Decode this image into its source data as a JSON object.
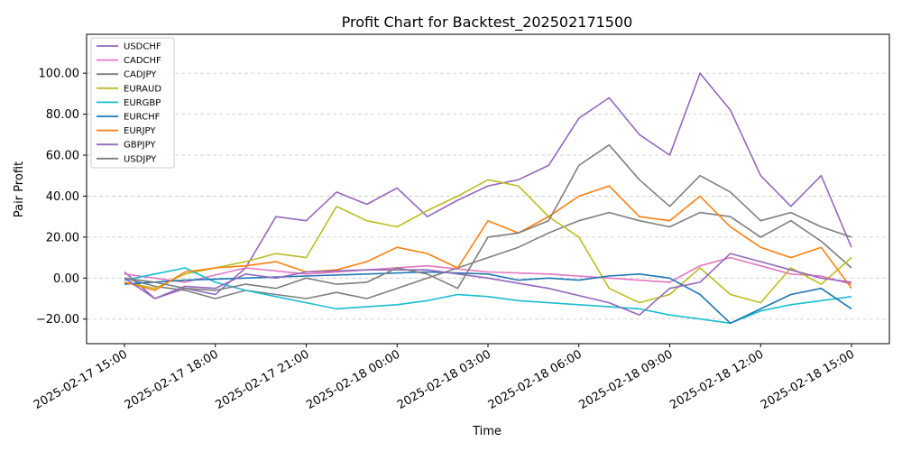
{
  "chart_data": {
    "type": "line",
    "title": "Profit Chart for Backtest_202502171500",
    "xlabel": "Time",
    "ylabel": "Pair Profit",
    "grid": "horizontal dashed",
    "legend_position": "top-left",
    "x_range": [
      "2025-02-17 13:45",
      "2025-02-18 16:15"
    ],
    "ylim": [
      -32,
      119
    ],
    "y_ticks": [
      -20,
      0,
      20,
      40,
      60,
      80,
      100
    ],
    "y_tick_labels": [
      "−20.00",
      "0.00",
      "20.00",
      "40.00",
      "60.00",
      "80.00",
      "100.00"
    ],
    "x_ticks": [
      "2025-02-17 15:00",
      "2025-02-17 18:00",
      "2025-02-17 21:00",
      "2025-02-18 00:00",
      "2025-02-18 03:00",
      "2025-02-18 06:00",
      "2025-02-18 09:00",
      "2025-02-18 12:00",
      "2025-02-18 15:00"
    ],
    "x_tick_labels": [
      "2025-02-17 15:00",
      "2025-02-17 18:00",
      "2025-02-17 21:00",
      "2025-02-18 00:00",
      "2025-02-18 03:00",
      "2025-02-18 06:00",
      "2025-02-18 09:00",
      "2025-02-18 12:00",
      "2025-02-18 15:00"
    ],
    "series": [
      {
        "name": "USDCHF",
        "color": "#9467bd",
        "points": [
          [
            "2025-02-17 15:00",
            3
          ],
          [
            "2025-02-17 16:00",
            -10
          ],
          [
            "2025-02-17 17:00",
            -5
          ],
          [
            "2025-02-17 18:00",
            -8
          ],
          [
            "2025-02-17 19:00",
            5
          ],
          [
            "2025-02-17 20:00",
            30
          ],
          [
            "2025-02-17 21:00",
            28
          ],
          [
            "2025-02-17 22:00",
            42
          ],
          [
            "2025-02-17 23:00",
            36
          ],
          [
            "2025-02-18 00:00",
            44
          ],
          [
            "2025-02-18 01:00",
            30
          ],
          [
            "2025-02-18 02:00",
            38
          ],
          [
            "2025-02-18 03:00",
            45
          ],
          [
            "2025-02-18 04:00",
            48
          ],
          [
            "2025-02-18 05:00",
            55
          ],
          [
            "2025-02-18 06:00",
            78
          ],
          [
            "2025-02-18 07:00",
            88
          ],
          [
            "2025-02-18 08:00",
            70
          ],
          [
            "2025-02-18 09:00",
            60
          ],
          [
            "2025-02-18 10:00",
            100
          ],
          [
            "2025-02-18 11:00",
            82
          ],
          [
            "2025-02-18 12:00",
            50
          ],
          [
            "2025-02-18 13:00",
            35
          ],
          [
            "2025-02-18 14:00",
            50
          ],
          [
            "2025-02-18 15:00",
            15
          ]
        ]
      },
      {
        "name": "CADCHF",
        "color": "#e377c2",
        "points": [
          [
            "2025-02-17 15:00",
            2
          ],
          [
            "2025-02-17 17:00",
            -2
          ],
          [
            "2025-02-17 19:00",
            5
          ],
          [
            "2025-02-17 21:00",
            2
          ],
          [
            "2025-02-17 23:00",
            4
          ],
          [
            "2025-02-18 01:00",
            6
          ],
          [
            "2025-02-18 03:00",
            3
          ],
          [
            "2025-02-18 05:00",
            2
          ],
          [
            "2025-02-18 07:00",
            0
          ],
          [
            "2025-02-18 09:00",
            -2
          ],
          [
            "2025-02-18 10:00",
            6
          ],
          [
            "2025-02-18 11:00",
            10
          ],
          [
            "2025-02-18 12:00",
            6
          ],
          [
            "2025-02-18 13:00",
            2
          ],
          [
            "2025-02-18 14:00",
            1
          ],
          [
            "2025-02-18 15:00",
            -3
          ]
        ]
      },
      {
        "name": "CADJPY",
        "color": "#7f7f7f",
        "points": [
          [
            "2025-02-17 15:00",
            0
          ],
          [
            "2025-02-17 16:00",
            -4
          ],
          [
            "2025-02-17 17:00",
            -6
          ],
          [
            "2025-02-17 18:00",
            -10
          ],
          [
            "2025-02-17 19:00",
            -6
          ],
          [
            "2025-02-17 20:00",
            -8
          ],
          [
            "2025-02-17 21:00",
            -10
          ],
          [
            "2025-02-17 22:00",
            -7
          ],
          [
            "2025-02-17 23:00",
            -10
          ],
          [
            "2025-02-18 00:00",
            -5
          ],
          [
            "2025-02-18 01:00",
            0
          ],
          [
            "2025-02-18 02:00",
            5
          ],
          [
            "2025-02-18 03:00",
            10
          ],
          [
            "2025-02-18 04:00",
            15
          ],
          [
            "2025-02-18 05:00",
            22
          ],
          [
            "2025-02-18 06:00",
            28
          ],
          [
            "2025-02-18 07:00",
            32
          ],
          [
            "2025-02-18 08:00",
            28
          ],
          [
            "2025-02-18 09:00",
            25
          ],
          [
            "2025-02-18 10:00",
            32
          ],
          [
            "2025-02-18 11:00",
            30
          ],
          [
            "2025-02-18 12:00",
            20
          ],
          [
            "2025-02-18 13:00",
            28
          ],
          [
            "2025-02-18 14:00",
            18
          ],
          [
            "2025-02-18 15:00",
            5
          ]
        ]
      },
      {
        "name": "EURAUD",
        "color": "#bcbd22",
        "points": [
          [
            "2025-02-17 15:00",
            -2
          ],
          [
            "2025-02-17 16:00",
            -5
          ],
          [
            "2025-02-17 17:00",
            2
          ],
          [
            "2025-02-17 18:00",
            5
          ],
          [
            "2025-02-17 19:00",
            8
          ],
          [
            "2025-02-17 20:00",
            12
          ],
          [
            "2025-02-17 21:00",
            10
          ],
          [
            "2025-02-17 22:00",
            35
          ],
          [
            "2025-02-17 23:00",
            28
          ],
          [
            "2025-02-18 00:00",
            25
          ],
          [
            "2025-02-18 01:00",
            33
          ],
          [
            "2025-02-18 02:00",
            40
          ],
          [
            "2025-02-18 03:00",
            48
          ],
          [
            "2025-02-18 04:00",
            45
          ],
          [
            "2025-02-18 05:00",
            30
          ],
          [
            "2025-02-18 06:00",
            20
          ],
          [
            "2025-02-18 07:00",
            -5
          ],
          [
            "2025-02-18 08:00",
            -12
          ],
          [
            "2025-02-18 09:00",
            -8
          ],
          [
            "2025-02-18 10:00",
            5
          ],
          [
            "2025-02-18 11:00",
            -8
          ],
          [
            "2025-02-18 12:00",
            -12
          ],
          [
            "2025-02-18 13:00",
            5
          ],
          [
            "2025-02-18 14:00",
            -3
          ],
          [
            "2025-02-18 15:00",
            10
          ]
        ]
      },
      {
        "name": "EURGBP",
        "color": "#17becf",
        "points": [
          [
            "2025-02-17 15:00",
            -1
          ],
          [
            "2025-02-17 16:00",
            2
          ],
          [
            "2025-02-17 17:00",
            5
          ],
          [
            "2025-02-17 18:00",
            -2
          ],
          [
            "2025-02-17 19:00",
            -6
          ],
          [
            "2025-02-17 20:00",
            -9
          ],
          [
            "2025-02-17 21:00",
            -12
          ],
          [
            "2025-02-17 22:00",
            -15
          ],
          [
            "2025-02-17 23:00",
            -14
          ],
          [
            "2025-02-18 00:00",
            -13
          ],
          [
            "2025-02-18 01:00",
            -11
          ],
          [
            "2025-02-18 02:00",
            -8
          ],
          [
            "2025-02-18 03:00",
            -9
          ],
          [
            "2025-02-18 04:00",
            -11
          ],
          [
            "2025-02-18 05:00",
            -12
          ],
          [
            "2025-02-18 06:00",
            -13
          ],
          [
            "2025-02-18 07:00",
            -14
          ],
          [
            "2025-02-18 08:00",
            -15
          ],
          [
            "2025-02-18 09:00",
            -18
          ],
          [
            "2025-02-18 10:00",
            -20
          ],
          [
            "2025-02-18 11:00",
            -22
          ],
          [
            "2025-02-18 12:00",
            -16
          ],
          [
            "2025-02-18 13:00",
            -13
          ],
          [
            "2025-02-18 14:00",
            -11
          ],
          [
            "2025-02-18 15:00",
            -9
          ]
        ]
      },
      {
        "name": "EURCHF",
        "color": "#1f77b4",
        "points": [
          [
            "2025-02-17 15:00",
            -3
          ],
          [
            "2025-02-17 17:00",
            -1
          ],
          [
            "2025-02-17 19:00",
            0
          ],
          [
            "2025-02-17 21:00",
            1
          ],
          [
            "2025-02-17 23:00",
            2
          ],
          [
            "2025-02-18 01:00",
            3
          ],
          [
            "2025-02-18 03:00",
            2
          ],
          [
            "2025-02-18 04:00",
            -1
          ],
          [
            "2025-02-18 05:00",
            0
          ],
          [
            "2025-02-18 06:00",
            -1
          ],
          [
            "2025-02-18 07:00",
            1
          ],
          [
            "2025-02-18 08:00",
            2
          ],
          [
            "2025-02-18 09:00",
            0
          ],
          [
            "2025-02-18 10:00",
            -8
          ],
          [
            "2025-02-18 11:00",
            -22
          ],
          [
            "2025-02-18 12:00",
            -15
          ],
          [
            "2025-02-18 13:00",
            -8
          ],
          [
            "2025-02-18 14:00",
            -5
          ],
          [
            "2025-02-18 15:00",
            -15
          ]
        ]
      },
      {
        "name": "EURJPY",
        "color": "#ff7f0e",
        "points": [
          [
            "2025-02-17 15:00",
            -2
          ],
          [
            "2025-02-17 16:00",
            -6
          ],
          [
            "2025-02-17 17:00",
            3
          ],
          [
            "2025-02-17 18:00",
            5
          ],
          [
            "2025-02-17 19:00",
            6
          ],
          [
            "2025-02-17 20:00",
            8
          ],
          [
            "2025-02-17 21:00",
            3
          ],
          [
            "2025-02-17 22:00",
            4
          ],
          [
            "2025-02-17 23:00",
            8
          ],
          [
            "2025-02-18 00:00",
            15
          ],
          [
            "2025-02-18 01:00",
            12
          ],
          [
            "2025-02-18 02:00",
            5
          ],
          [
            "2025-02-18 03:00",
            28
          ],
          [
            "2025-02-18 04:00",
            22
          ],
          [
            "2025-02-18 05:00",
            30
          ],
          [
            "2025-02-18 06:00",
            40
          ],
          [
            "2025-02-18 07:00",
            45
          ],
          [
            "2025-02-18 08:00",
            30
          ],
          [
            "2025-02-18 09:00",
            28
          ],
          [
            "2025-02-18 10:00",
            40
          ],
          [
            "2025-02-18 11:00",
            25
          ],
          [
            "2025-02-18 12:00",
            15
          ],
          [
            "2025-02-18 13:00",
            10
          ],
          [
            "2025-02-18 14:00",
            15
          ],
          [
            "2025-02-18 15:00",
            -5
          ]
        ]
      },
      {
        "name": "GBPJPY",
        "color": "#9467bd",
        "points": [
          [
            "2025-02-17 15:00",
            0
          ],
          [
            "2025-02-17 16:00",
            -10
          ],
          [
            "2025-02-17 17:00",
            -4
          ],
          [
            "2025-02-17 18:00",
            -5
          ],
          [
            "2025-02-17 19:00",
            2
          ],
          [
            "2025-02-17 20:00",
            0
          ],
          [
            "2025-02-17 21:00",
            3
          ],
          [
            "2025-02-17 23:00",
            4
          ],
          [
            "2025-02-18 01:00",
            4
          ],
          [
            "2025-02-18 03:00",
            0
          ],
          [
            "2025-02-18 05:00",
            -5
          ],
          [
            "2025-02-18 07:00",
            -12
          ],
          [
            "2025-02-18 08:00",
            -18
          ],
          [
            "2025-02-18 09:00",
            -5
          ],
          [
            "2025-02-18 10:00",
            -2
          ],
          [
            "2025-02-18 11:00",
            12
          ],
          [
            "2025-02-18 12:00",
            8
          ],
          [
            "2025-02-18 13:00",
            4
          ],
          [
            "2025-02-18 14:00",
            0
          ],
          [
            "2025-02-18 15:00",
            -2
          ]
        ]
      },
      {
        "name": "USDJPY",
        "color": "#7f7f7f",
        "points": [
          [
            "2025-02-17 15:00",
            0
          ],
          [
            "2025-02-17 16:00",
            -2
          ],
          [
            "2025-02-17 17:00",
            -5
          ],
          [
            "2025-02-17 18:00",
            -6
          ],
          [
            "2025-02-17 19:00",
            -3
          ],
          [
            "2025-02-17 20:00",
            -5
          ],
          [
            "2025-02-17 21:00",
            0
          ],
          [
            "2025-02-17 22:00",
            -3
          ],
          [
            "2025-02-17 23:00",
            -2
          ],
          [
            "2025-02-18 00:00",
            5
          ],
          [
            "2025-02-18 01:00",
            2
          ],
          [
            "2025-02-18 02:00",
            -5
          ],
          [
            "2025-02-18 03:00",
            20
          ],
          [
            "2025-02-18 04:00",
            22
          ],
          [
            "2025-02-18 05:00",
            28
          ],
          [
            "2025-02-18 06:00",
            55
          ],
          [
            "2025-02-18 07:00",
            65
          ],
          [
            "2025-02-18 08:00",
            48
          ],
          [
            "2025-02-18 09:00",
            35
          ],
          [
            "2025-02-18 10:00",
            50
          ],
          [
            "2025-02-18 11:00",
            42
          ],
          [
            "2025-02-18 12:00",
            28
          ],
          [
            "2025-02-18 13:00",
            32
          ],
          [
            "2025-02-18 14:00",
            25
          ],
          [
            "2025-02-18 15:00",
            20
          ]
        ]
      }
    ]
  }
}
